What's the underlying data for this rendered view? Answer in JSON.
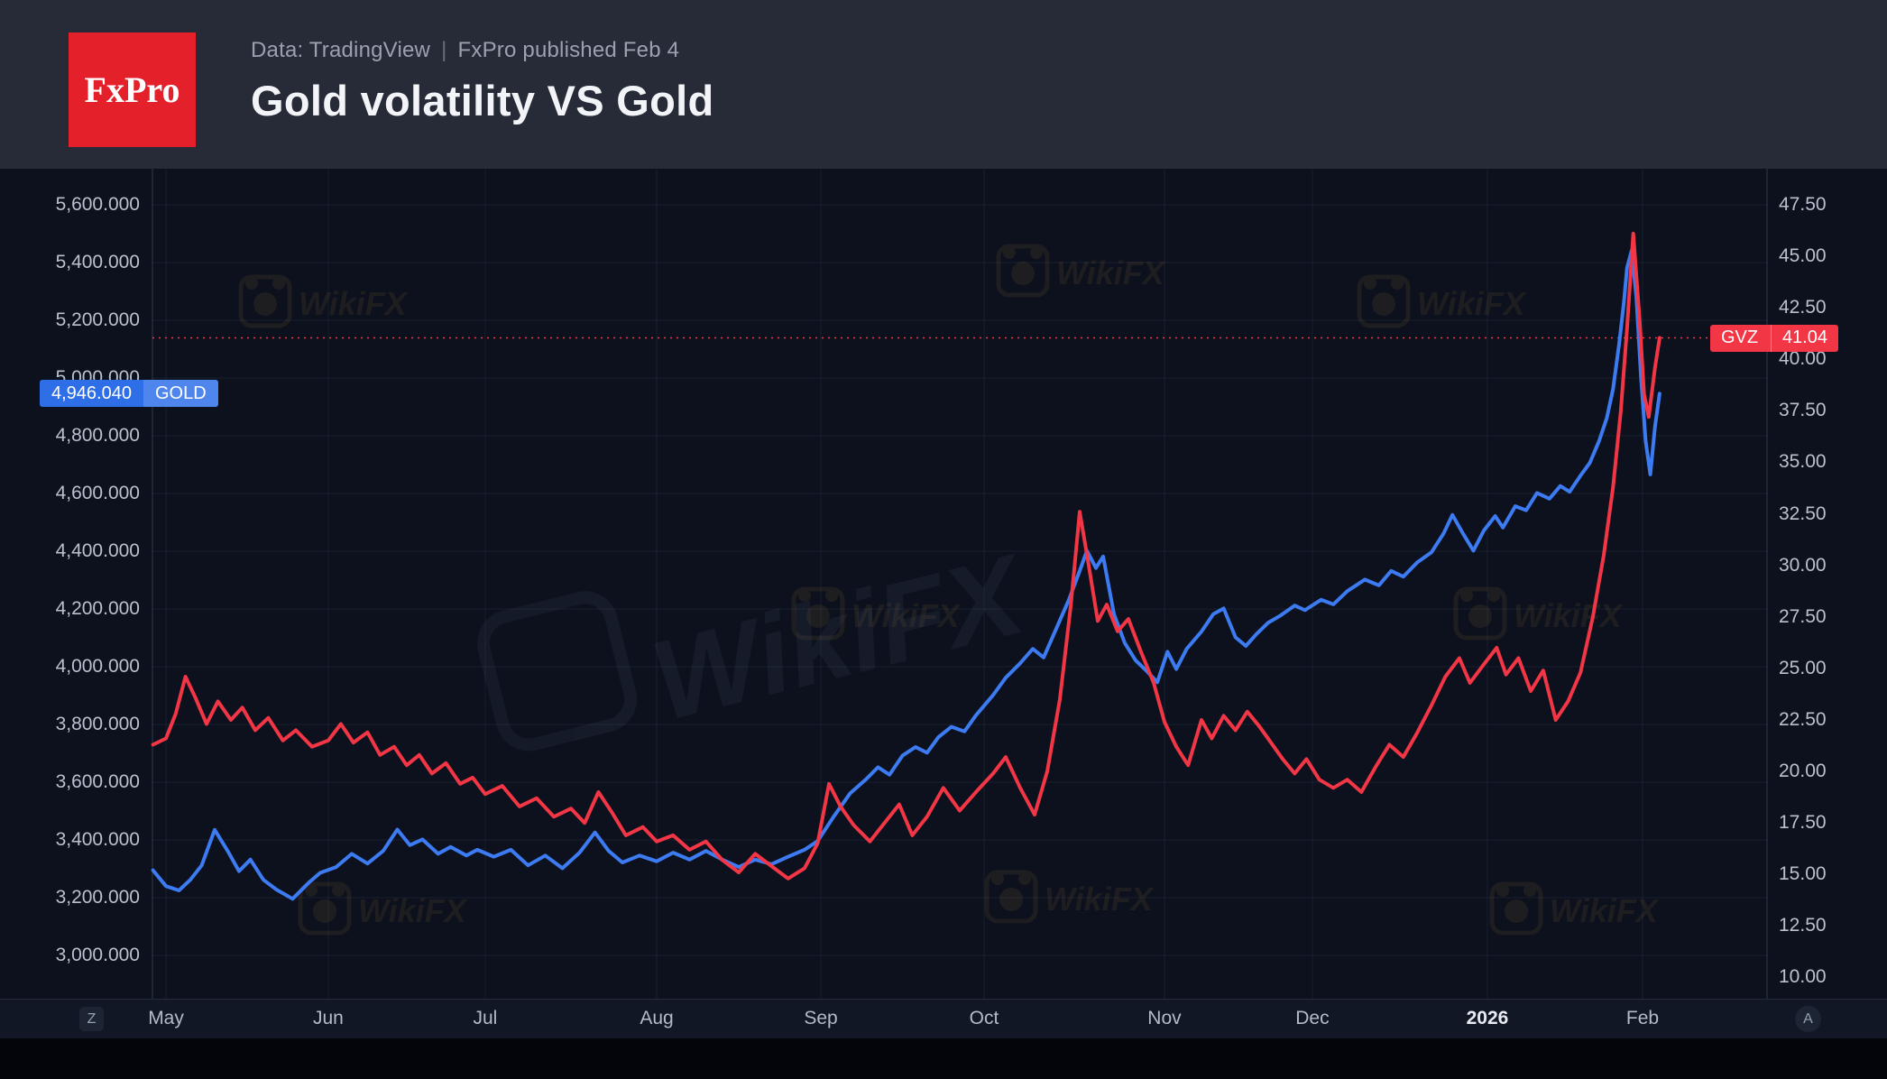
{
  "header": {
    "logo_text": "FxPro",
    "source_prefix": "Data: TradingView",
    "source_sep": "|",
    "source_suffix": "FxPro published Feb 4",
    "title": "Gold volatility VS Gold"
  },
  "toolbar": {
    "left_button": "Z",
    "right_button": "A"
  },
  "watermark": {
    "text": "WikiFX"
  },
  "colors": {
    "header_bg": "#272b37",
    "plot_bg": "#0c111d",
    "logo_red": "#e4212b",
    "gold_line": "#3d7bf2",
    "gvz_line": "#f23645",
    "gold_badge": "#2e6fe8",
    "gvz_badge": "#f23645",
    "axis_text": "#bac0cd",
    "watermark_orange": "#d2953f"
  },
  "price_labels": {
    "gold": {
      "value": "4,946.040",
      "ticker": "GOLD",
      "value_num": 4946.04
    },
    "gvz": {
      "ticker": "GVZ",
      "value": "41.04",
      "value_num": 41.04
    }
  },
  "chart_data": {
    "type": "line",
    "title": "Gold volatility VS Gold",
    "grid": true,
    "x_ticks": [
      {
        "label": "May",
        "pos": 0.0084
      },
      {
        "label": "Jun",
        "pos": 0.1089
      },
      {
        "label": "Jul",
        "pos": 0.2061
      },
      {
        "label": "Aug",
        "pos": 0.3123
      },
      {
        "label": "Sep",
        "pos": 0.414
      },
      {
        "label": "Oct",
        "pos": 0.5151
      },
      {
        "label": "Nov",
        "pos": 0.6268
      },
      {
        "label": "Dec",
        "pos": 0.7184
      },
      {
        "label": "2026",
        "pos": 0.8268,
        "year": true
      },
      {
        "label": "Feb",
        "pos": 0.9229
      }
    ],
    "left_axis": {
      "min": 2850,
      "max": 5725,
      "tick_start": 3000,
      "tick_step": 200,
      "tick_count": 14,
      "decimals": 3
    },
    "right_axis": {
      "min": 8.97,
      "max": 49.25,
      "tick_start": 10,
      "tick_step": 2.5,
      "tick_count": 16,
      "decimals": 2
    },
    "reference_line": {
      "series": "gvz",
      "value": 41.04,
      "style": "dotted",
      "color": "#f23645"
    },
    "series": [
      {
        "id": "gold",
        "name": "GOLD",
        "axis": "left",
        "color": "#3d7bf2",
        "last_value": 4946.04,
        "points": [
          [
            -0.08,
            3295
          ],
          [
            0,
            3240
          ],
          [
            0.08,
            3225
          ],
          [
            0.15,
            3262
          ],
          [
            0.22,
            3312
          ],
          [
            0.3,
            3435
          ],
          [
            0.38,
            3362
          ],
          [
            0.45,
            3292
          ],
          [
            0.52,
            3332
          ],
          [
            0.6,
            3262
          ],
          [
            0.68,
            3228
          ],
          [
            0.78,
            3196
          ],
          [
            0.88,
            3252
          ],
          [
            0.95,
            3286
          ],
          [
            1.05,
            3306
          ],
          [
            1.15,
            3352
          ],
          [
            1.25,
            3318
          ],
          [
            1.35,
            3362
          ],
          [
            1.44,
            3436
          ],
          [
            1.52,
            3382
          ],
          [
            1.6,
            3402
          ],
          [
            1.7,
            3352
          ],
          [
            1.78,
            3376
          ],
          [
            1.88,
            3346
          ],
          [
            1.95,
            3366
          ],
          [
            2.05,
            3342
          ],
          [
            2.15,
            3366
          ],
          [
            2.25,
            3312
          ],
          [
            2.35,
            3346
          ],
          [
            2.45,
            3302
          ],
          [
            2.55,
            3356
          ],
          [
            2.64,
            3426
          ],
          [
            2.72,
            3362
          ],
          [
            2.8,
            3322
          ],
          [
            2.9,
            3346
          ],
          [
            3,
            3326
          ],
          [
            3.1,
            3356
          ],
          [
            3.2,
            3332
          ],
          [
            3.3,
            3362
          ],
          [
            3.4,
            3332
          ],
          [
            3.5,
            3306
          ],
          [
            3.6,
            3332
          ],
          [
            3.7,
            3316
          ],
          [
            3.8,
            3342
          ],
          [
            3.9,
            3366
          ],
          [
            3.98,
            3396
          ],
          [
            4.08,
            3482
          ],
          [
            4.18,
            3562
          ],
          [
            4.28,
            3612
          ],
          [
            4.35,
            3652
          ],
          [
            4.42,
            3626
          ],
          [
            4.5,
            3692
          ],
          [
            4.58,
            3722
          ],
          [
            4.65,
            3702
          ],
          [
            4.72,
            3756
          ],
          [
            4.8,
            3792
          ],
          [
            4.88,
            3776
          ],
          [
            4.95,
            3832
          ],
          [
            5.05,
            3902
          ],
          [
            5.12,
            3962
          ],
          [
            5.2,
            4012
          ],
          [
            5.27,
            4062
          ],
          [
            5.33,
            4032
          ],
          [
            5.4,
            4132
          ],
          [
            5.47,
            4232
          ],
          [
            5.53,
            4332
          ],
          [
            5.57,
            4402
          ],
          [
            5.62,
            4342
          ],
          [
            5.66,
            4382
          ],
          [
            5.72,
            4182
          ],
          [
            5.78,
            4082
          ],
          [
            5.84,
            4022
          ],
          [
            5.9,
            3986
          ],
          [
            5.96,
            3946
          ],
          [
            6.02,
            4052
          ],
          [
            6.08,
            3992
          ],
          [
            6.15,
            4062
          ],
          [
            6.25,
            4122
          ],
          [
            6.33,
            4182
          ],
          [
            6.4,
            4202
          ],
          [
            6.48,
            4102
          ],
          [
            6.55,
            4072
          ],
          [
            6.62,
            4112
          ],
          [
            6.7,
            4152
          ],
          [
            6.78,
            4176
          ],
          [
            6.88,
            4212
          ],
          [
            6.95,
            4196
          ],
          [
            7.05,
            4232
          ],
          [
            7.12,
            4216
          ],
          [
            7.2,
            4262
          ],
          [
            7.3,
            4302
          ],
          [
            7.38,
            4282
          ],
          [
            7.45,
            4332
          ],
          [
            7.52,
            4312
          ],
          [
            7.6,
            4362
          ],
          [
            7.68,
            4396
          ],
          [
            7.75,
            4462
          ],
          [
            7.8,
            4526
          ],
          [
            7.86,
            4462
          ],
          [
            7.92,
            4402
          ],
          [
            7.98,
            4472
          ],
          [
            8.05,
            4522
          ],
          [
            8.1,
            4482
          ],
          [
            8.18,
            4556
          ],
          [
            8.25,
            4542
          ],
          [
            8.32,
            4602
          ],
          [
            8.4,
            4582
          ],
          [
            8.47,
            4626
          ],
          [
            8.53,
            4606
          ],
          [
            8.6,
            4662
          ],
          [
            8.66,
            4706
          ],
          [
            8.72,
            4782
          ],
          [
            8.77,
            4862
          ],
          [
            8.81,
            4962
          ],
          [
            8.85,
            5122
          ],
          [
            8.88,
            5262
          ],
          [
            8.9,
            5382
          ],
          [
            8.93,
            5442
          ],
          [
            8.96,
            5282
          ],
          [
            8.99,
            5002
          ],
          [
            9.02,
            4782
          ],
          [
            9.05,
            4666
          ],
          [
            9.08,
            4832
          ],
          [
            9.11,
            4946
          ]
        ]
      },
      {
        "id": "gvz",
        "name": "GVZ",
        "axis": "right",
        "color": "#f23645",
        "last_value": 41.04,
        "points": [
          [
            -0.08,
            21.3
          ],
          [
            0,
            21.6
          ],
          [
            0.06,
            22.8
          ],
          [
            0.12,
            24.6
          ],
          [
            0.18,
            23.6
          ],
          [
            0.25,
            22.3
          ],
          [
            0.32,
            23.4
          ],
          [
            0.4,
            22.5
          ],
          [
            0.47,
            23.1
          ],
          [
            0.55,
            22.0
          ],
          [
            0.63,
            22.6
          ],
          [
            0.72,
            21.5
          ],
          [
            0.8,
            22.0
          ],
          [
            0.9,
            21.2
          ],
          [
            1,
            21.5
          ],
          [
            1.08,
            22.3
          ],
          [
            1.16,
            21.4
          ],
          [
            1.25,
            21.9
          ],
          [
            1.33,
            20.8
          ],
          [
            1.42,
            21.2
          ],
          [
            1.5,
            20.3
          ],
          [
            1.58,
            20.8
          ],
          [
            1.66,
            19.9
          ],
          [
            1.75,
            20.4
          ],
          [
            1.84,
            19.4
          ],
          [
            1.92,
            19.7
          ],
          [
            2,
            18.9
          ],
          [
            2.1,
            19.3
          ],
          [
            2.2,
            18.3
          ],
          [
            2.3,
            18.7
          ],
          [
            2.4,
            17.8
          ],
          [
            2.5,
            18.2
          ],
          [
            2.58,
            17.5
          ],
          [
            2.66,
            19.0
          ],
          [
            2.74,
            18.0
          ],
          [
            2.82,
            16.9
          ],
          [
            2.92,
            17.3
          ],
          [
            3,
            16.6
          ],
          [
            3.1,
            16.9
          ],
          [
            3.2,
            16.2
          ],
          [
            3.3,
            16.6
          ],
          [
            3.4,
            15.7
          ],
          [
            3.5,
            15.1
          ],
          [
            3.6,
            16.0
          ],
          [
            3.7,
            15.4
          ],
          [
            3.8,
            14.8
          ],
          [
            3.9,
            15.3
          ],
          [
            3.98,
            16.5
          ],
          [
            4.05,
            19.4
          ],
          [
            4.12,
            18.3
          ],
          [
            4.2,
            17.4
          ],
          [
            4.3,
            16.6
          ],
          [
            4.4,
            17.6
          ],
          [
            4.48,
            18.4
          ],
          [
            4.56,
            16.9
          ],
          [
            4.65,
            17.8
          ],
          [
            4.75,
            19.2
          ],
          [
            4.85,
            18.1
          ],
          [
            4.95,
            19.0
          ],
          [
            5.05,
            19.9
          ],
          [
            5.12,
            20.7
          ],
          [
            5.2,
            19.2
          ],
          [
            5.28,
            17.9
          ],
          [
            5.35,
            20.0
          ],
          [
            5.42,
            23.5
          ],
          [
            5.48,
            28.0
          ],
          [
            5.53,
            32.6
          ],
          [
            5.58,
            30.0
          ],
          [
            5.63,
            27.3
          ],
          [
            5.68,
            28.1
          ],
          [
            5.74,
            26.8
          ],
          [
            5.8,
            27.4
          ],
          [
            5.87,
            25.8
          ],
          [
            5.94,
            24.3
          ],
          [
            6,
            22.4
          ],
          [
            6.08,
            21.2
          ],
          [
            6.16,
            20.3
          ],
          [
            6.25,
            22.5
          ],
          [
            6.32,
            21.6
          ],
          [
            6.4,
            22.7
          ],
          [
            6.48,
            22.0
          ],
          [
            6.56,
            22.9
          ],
          [
            6.64,
            22.2
          ],
          [
            6.72,
            21.4
          ],
          [
            6.8,
            20.6
          ],
          [
            6.88,
            19.9
          ],
          [
            6.96,
            20.6
          ],
          [
            7.04,
            19.6
          ],
          [
            7.12,
            19.2
          ],
          [
            7.2,
            19.6
          ],
          [
            7.28,
            19.0
          ],
          [
            7.36,
            20.2
          ],
          [
            7.44,
            21.3
          ],
          [
            7.52,
            20.7
          ],
          [
            7.6,
            21.9
          ],
          [
            7.68,
            23.2
          ],
          [
            7.76,
            24.6
          ],
          [
            7.84,
            25.5
          ],
          [
            7.9,
            24.3
          ],
          [
            7.98,
            25.2
          ],
          [
            8.06,
            26.0
          ],
          [
            8.12,
            24.7
          ],
          [
            8.2,
            25.5
          ],
          [
            8.28,
            23.9
          ],
          [
            8.36,
            24.9
          ],
          [
            8.44,
            22.5
          ],
          [
            8.52,
            23.4
          ],
          [
            8.6,
            24.8
          ],
          [
            8.68,
            27.5
          ],
          [
            8.75,
            30.5
          ],
          [
            8.81,
            33.8
          ],
          [
            8.86,
            37.5
          ],
          [
            8.9,
            41.5
          ],
          [
            8.94,
            46.1
          ],
          [
            8.98,
            42.0
          ],
          [
            9.01,
            38.3
          ],
          [
            9.04,
            37.2
          ],
          [
            9.08,
            39.6
          ],
          [
            9.11,
            41.04
          ]
        ]
      }
    ]
  }
}
